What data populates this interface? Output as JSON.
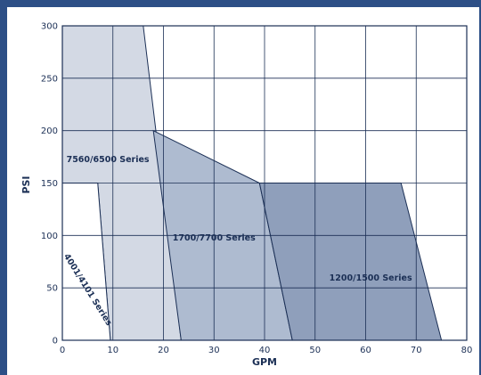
{
  "chart_data": {
    "type": "area",
    "xlabel": "GPM",
    "ylabel": "PSI",
    "xlim": [
      0,
      80
    ],
    "ylim": [
      0,
      300
    ],
    "x_ticks": [
      "0",
      "10",
      "20",
      "30",
      "40",
      "50",
      "60",
      "70",
      "80"
    ],
    "y_ticks": [
      "0",
      "50",
      "100",
      "150",
      "200",
      "250",
      "300"
    ],
    "grid": true,
    "regions": [
      {
        "name": "7560/6500 Series",
        "color": "#d3d9e4",
        "points": [
          [
            0,
            300
          ],
          [
            16,
            300
          ],
          [
            23.5,
            0
          ],
          [
            9.5,
            0
          ],
          [
            7,
            150
          ],
          [
            0,
            150
          ]
        ],
        "label_at": [
          9,
          170
        ],
        "label_angle": 0
      },
      {
        "name": "1700/7700 Series",
        "color": "#aebbd0",
        "points": [
          [
            18,
            200
          ],
          [
            39,
            150
          ],
          [
            45.5,
            0
          ],
          [
            23.5,
            0
          ]
        ],
        "label_at": [
          30,
          95
        ],
        "label_angle": 0
      },
      {
        "name": "1200/1500 Series",
        "color": "#8f9fbb",
        "points": [
          [
            39,
            150
          ],
          [
            67,
            150
          ],
          [
            75,
            0
          ],
          [
            45.5,
            0
          ]
        ],
        "label_at": [
          61,
          57
        ],
        "label_angle": 0
      },
      {
        "name": "4001/4101 Series",
        "color": "#ffffff",
        "points": [
          [
            0,
            150
          ],
          [
            7,
            150
          ],
          [
            9.5,
            0
          ],
          [
            0,
            0
          ]
        ],
        "label_at": [
          4.6,
          47
        ],
        "label_angle": 58
      }
    ]
  }
}
